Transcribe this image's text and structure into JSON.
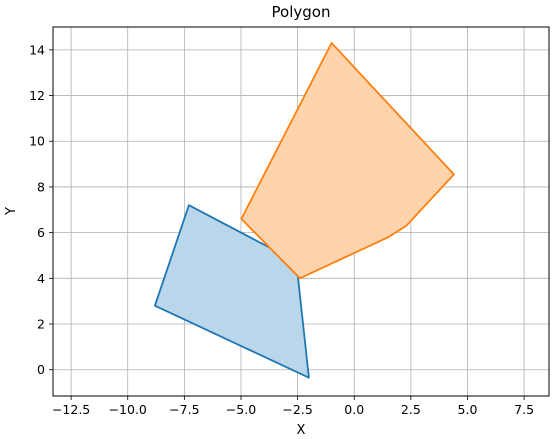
{
  "chart_data": {
    "type": "area",
    "title": "Polygon",
    "xlabel": "X",
    "ylabel": "Y",
    "xlim": [
      -13.3,
      8.6
    ],
    "ylim": [
      -1.15,
      15.0
    ],
    "x_ticks": [
      -12.5,
      -10.0,
      -7.5,
      -5.0,
      -2.5,
      0.0,
      2.5,
      5.0,
      7.5
    ],
    "x_tick_labels": [
      "−12.5",
      "−10.0",
      "−7.5",
      "−5.0",
      "−2.5",
      "0.0",
      "2.5",
      "5.0",
      "7.5"
    ],
    "y_ticks": [
      0,
      2,
      4,
      6,
      8,
      10,
      12,
      14
    ],
    "y_tick_labels": [
      "0",
      "2",
      "4",
      "6",
      "8",
      "10",
      "12",
      "14"
    ],
    "grid": true,
    "series": [
      {
        "color": "#1f77b4",
        "fill": "#bad6ea",
        "points": [
          [
            -7.3,
            7.2
          ],
          [
            -2.5,
            4.7
          ],
          [
            -2.5,
            4.2
          ],
          [
            -2.0,
            -0.35
          ],
          [
            -8.8,
            2.8
          ]
        ]
      },
      {
        "color": "#ff7f0e",
        "fill": "#ffd4ad",
        "points": [
          [
            -1.0,
            14.3
          ],
          [
            4.4,
            8.55
          ],
          [
            2.3,
            6.3
          ],
          [
            1.5,
            5.8
          ],
          [
            -2.4,
            4.0
          ],
          [
            -4.98,
            6.6
          ]
        ]
      }
    ]
  }
}
